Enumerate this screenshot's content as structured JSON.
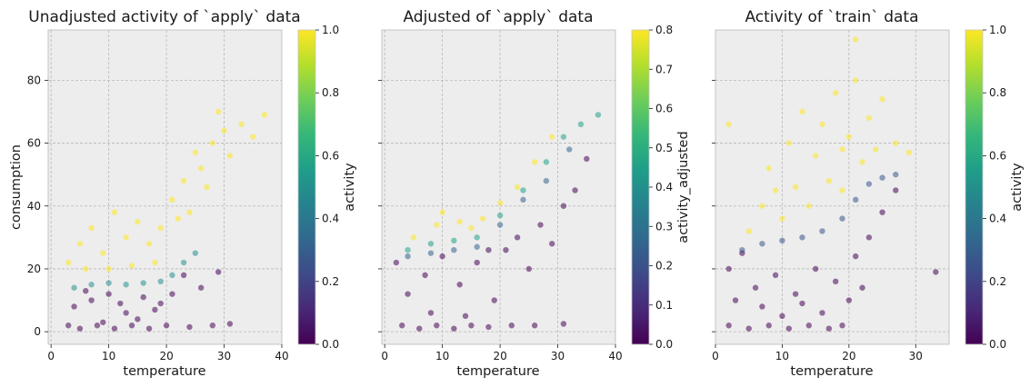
{
  "chart_data": [
    {
      "type": "scatter",
      "title": "Unadjusted activity of `apply` data",
      "xlabel": "temperature",
      "ylabel": "consumption",
      "xlim": [
        -0.5,
        40
      ],
      "ylim": [
        -4,
        96
      ],
      "xticks": [
        0,
        10,
        20,
        30,
        40
      ],
      "yticks": [
        0,
        20,
        40,
        60,
        80
      ],
      "grid": true,
      "colorbar": {
        "label": "activity",
        "range": [
          0.0,
          1.0
        ],
        "ticks": [
          0.0,
          0.2,
          0.4,
          0.6,
          0.8,
          1.0
        ],
        "colormap": "viridis"
      },
      "series": [
        {
          "value": 0.0,
          "points": [
            [
              3,
              2
            ],
            [
              5,
              1
            ],
            [
              8,
              2
            ],
            [
              11,
              1
            ],
            [
              14,
              2
            ],
            [
              17,
              1
            ],
            [
              20,
              2
            ],
            [
              24,
              1.5
            ],
            [
              28,
              2
            ],
            [
              31,
              2.5
            ],
            [
              4,
              8
            ],
            [
              7,
              10
            ],
            [
              10,
              12
            ],
            [
              13,
              6
            ],
            [
              16,
              11
            ],
            [
              19,
              9
            ],
            [
              21,
              12
            ],
            [
              23,
              18
            ],
            [
              26,
              14
            ],
            [
              29,
              19
            ],
            [
              9,
              3
            ],
            [
              15,
              4
            ],
            [
              18,
              7
            ],
            [
              6,
              13
            ],
            [
              12,
              9
            ]
          ]
        },
        {
          "value": 0.5,
          "points": [
            [
              4,
              14
            ],
            [
              7,
              15
            ],
            [
              10,
              15.5
            ],
            [
              13,
              15
            ],
            [
              16,
              15.5
            ],
            [
              19,
              16
            ],
            [
              21,
              18
            ],
            [
              23,
              22
            ],
            [
              25,
              25
            ]
          ]
        },
        {
          "value": 1.0,
          "points": [
            [
              3,
              22
            ],
            [
              5,
              28
            ],
            [
              7,
              33
            ],
            [
              9,
              25
            ],
            [
              11,
              38
            ],
            [
              13,
              30
            ],
            [
              15,
              35
            ],
            [
              17,
              28
            ],
            [
              19,
              33
            ],
            [
              21,
              42
            ],
            [
              23,
              48
            ],
            [
              24,
              38
            ],
            [
              26,
              52
            ],
            [
              27,
              46
            ],
            [
              28,
              60
            ],
            [
              30,
              64
            ],
            [
              31,
              56
            ],
            [
              33,
              66
            ],
            [
              35,
              62
            ],
            [
              37,
              69
            ],
            [
              6,
              20
            ],
            [
              10,
              20
            ],
            [
              14,
              21
            ],
            [
              18,
              22
            ],
            [
              22,
              36
            ],
            [
              25,
              57
            ],
            [
              29,
              70
            ]
          ]
        }
      ]
    },
    {
      "type": "scatter",
      "title": "Adjusted of `apply` data",
      "xlabel": "temperature",
      "ylabel": "",
      "xlim": [
        -0.5,
        40
      ],
      "ylim": [
        -4,
        96
      ],
      "xticks": [
        0,
        10,
        20,
        30,
        40
      ],
      "yticks": [
        0,
        20,
        40,
        60,
        80
      ],
      "grid": true,
      "colorbar": {
        "label": "activity_adjusted",
        "range": [
          0.0,
          0.8
        ],
        "ticks": [
          0.0,
          0.1,
          0.2,
          0.3,
          0.4,
          0.5,
          0.6,
          0.7,
          0.8
        ],
        "colormap": "viridis"
      },
      "series": [
        {
          "value": 0.0,
          "points": [
            [
              3,
              2
            ],
            [
              6,
              1
            ],
            [
              9,
              2
            ],
            [
              12,
              1
            ],
            [
              15,
              2
            ],
            [
              18,
              1.5
            ],
            [
              22,
              2
            ],
            [
              26,
              2
            ],
            [
              31,
              2.5
            ],
            [
              4,
              12
            ],
            [
              7,
              18
            ],
            [
              10,
              24
            ],
            [
              13,
              15
            ],
            [
              16,
              22
            ],
            [
              19,
              10
            ],
            [
              21,
              26
            ],
            [
              23,
              30
            ],
            [
              25,
              20
            ],
            [
              27,
              34
            ],
            [
              29,
              28
            ],
            [
              31,
              40
            ],
            [
              33,
              45
            ],
            [
              35,
              55
            ],
            [
              8,
              6
            ],
            [
              14,
              5
            ],
            [
              18,
              26
            ],
            [
              2,
              22
            ]
          ]
        },
        {
          "value": 0.25,
          "points": [
            [
              4,
              24
            ],
            [
              8,
              25
            ],
            [
              12,
              26
            ],
            [
              16,
              27
            ],
            [
              20,
              34
            ],
            [
              24,
              42
            ],
            [
              28,
              48
            ],
            [
              32,
              58
            ]
          ]
        },
        {
          "value": 0.45,
          "points": [
            [
              4,
              26
            ],
            [
              8,
              28
            ],
            [
              12,
              29
            ],
            [
              16,
              30
            ],
            [
              20,
              37
            ],
            [
              24,
              45
            ],
            [
              28,
              54
            ],
            [
              31,
              62
            ],
            [
              34,
              66
            ],
            [
              37,
              69
            ]
          ]
        },
        {
          "value": 0.8,
          "points": [
            [
              5,
              30
            ],
            [
              9,
              34
            ],
            [
              13,
              35
            ],
            [
              17,
              36
            ],
            [
              20,
              41
            ],
            [
              23,
              46
            ],
            [
              26,
              54
            ],
            [
              29,
              62
            ],
            [
              10,
              38
            ],
            [
              15,
              33
            ]
          ]
        }
      ]
    },
    {
      "type": "scatter",
      "title": "Activity of `train` data",
      "xlabel": "temperature",
      "ylabel": "",
      "xlim": [
        0,
        35
      ],
      "ylim": [
        -4,
        96
      ],
      "xticks": [
        0,
        10,
        20,
        30
      ],
      "yticks": [
        0,
        20,
        40,
        60,
        80
      ],
      "grid": true,
      "colorbar": {
        "label": "activity",
        "range": [
          0.0,
          1.0
        ],
        "ticks": [
          0.0,
          0.2,
          0.4,
          0.6,
          0.8,
          1.0
        ],
        "colormap": "viridis"
      },
      "series": [
        {
          "value": 0.0,
          "points": [
            [
              2,
              2
            ],
            [
              5,
              1
            ],
            [
              8,
              2
            ],
            [
              11,
              1
            ],
            [
              14,
              2
            ],
            [
              17,
              1
            ],
            [
              19,
              2
            ],
            [
              3,
              10
            ],
            [
              6,
              14
            ],
            [
              9,
              18
            ],
            [
              12,
              12
            ],
            [
              15,
              20
            ],
            [
              18,
              16
            ],
            [
              21,
              24
            ],
            [
              23,
              30
            ],
            [
              25,
              38
            ],
            [
              27,
              45
            ],
            [
              2,
              20
            ],
            [
              4,
              25
            ],
            [
              7,
              8
            ],
            [
              10,
              5
            ],
            [
              13,
              9
            ],
            [
              16,
              6
            ],
            [
              20,
              10
            ],
            [
              22,
              14
            ],
            [
              33,
              19
            ]
          ]
        },
        {
          "value": 0.25,
          "points": [
            [
              4,
              26
            ],
            [
              7,
              28
            ],
            [
              10,
              29
            ],
            [
              13,
              30
            ],
            [
              16,
              32
            ],
            [
              19,
              36
            ],
            [
              21,
              42
            ],
            [
              23,
              47
            ],
            [
              25,
              49
            ],
            [
              27,
              50
            ]
          ]
        },
        {
          "value": 1.0,
          "points": [
            [
              5,
              32
            ],
            [
              7,
              40
            ],
            [
              8,
              52
            ],
            [
              10,
              36
            ],
            [
              11,
              60
            ],
            [
              12,
              46
            ],
            [
              13,
              70
            ],
            [
              14,
              40
            ],
            [
              15,
              56
            ],
            [
              16,
              66
            ],
            [
              17,
              48
            ],
            [
              18,
              76
            ],
            [
              19,
              58
            ],
            [
              20,
              62
            ],
            [
              21,
              80
            ],
            [
              22,
              54
            ],
            [
              23,
              68
            ],
            [
              24,
              58
            ],
            [
              25,
              74
            ],
            [
              27,
              60
            ],
            [
              29,
              57
            ],
            [
              2,
              66
            ],
            [
              21,
              93
            ],
            [
              9,
              45
            ],
            [
              19,
              45
            ]
          ]
        }
      ]
    }
  ]
}
